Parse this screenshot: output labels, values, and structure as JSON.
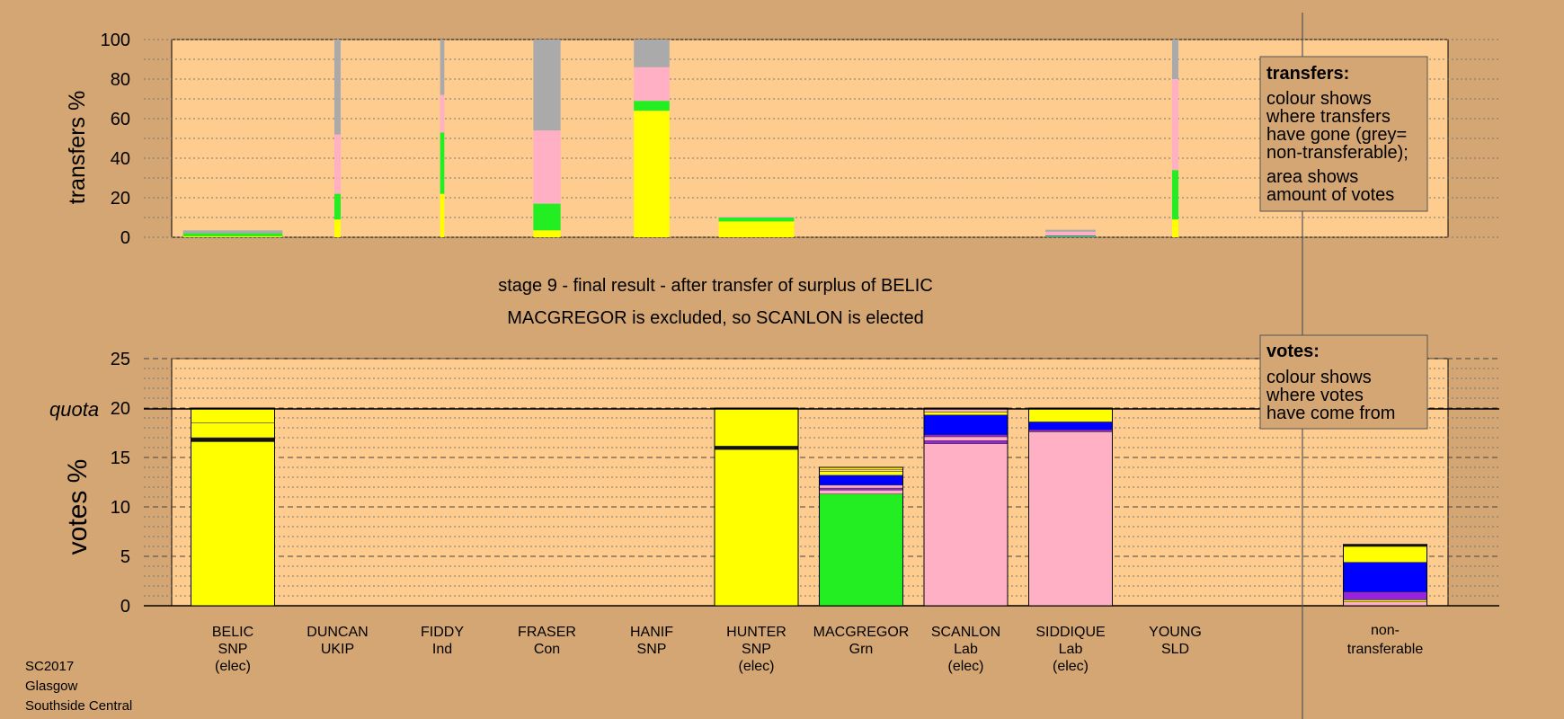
{
  "colors": {
    "background": "#d4a673",
    "panel": "#ffcc8f",
    "snp": "#ffff00",
    "green": "#22ee22",
    "labour": "#ffb0c4",
    "libdem": "#0000ff",
    "other": "#9922dd",
    "nontransferable": "#aaaaaa"
  },
  "footer": {
    "line1": "SC2017",
    "line2": "Glasgow",
    "line3": "Southside Central"
  },
  "stage_title": "stage 9 - final result - after transfer of surplus of BELIC",
  "stage_subtitle": "MACGREGOR is excluded, so SCANLON is elected",
  "transfers_legend": {
    "title": "transfers:",
    "lines": [
      "colour shows",
      "where transfers",
      "have gone (grey=",
      "non-transferable);",
      "area shows",
      "amount of votes"
    ]
  },
  "votes_legend": {
    "title": "votes:",
    "lines": [
      "colour shows",
      "where votes",
      "have come from"
    ]
  },
  "chart_data": [
    {
      "type": "bar",
      "name": "transfers",
      "ylabel": "transfers %",
      "ylim": [
        0,
        100
      ],
      "yticks": [
        0,
        20,
        40,
        60,
        80,
        100
      ],
      "grid": true,
      "bars": [
        {
          "center": 0,
          "width": 0.95,
          "segments": [
            {
              "color": "snp",
              "h": 0.5
            },
            {
              "color": "green",
              "h": 1.5
            },
            {
              "color": "nontransferable",
              "h": 1.5
            }
          ]
        },
        {
          "center": 1,
          "width": 0.06,
          "segments": [
            {
              "color": "snp",
              "h": 9
            },
            {
              "color": "green",
              "h": 13
            },
            {
              "color": "labour",
              "h": 30
            },
            {
              "color": "nontransferable",
              "h": 48
            }
          ]
        },
        {
          "center": 2,
          "width": 0.04,
          "segments": [
            {
              "color": "snp",
              "h": 22
            },
            {
              "color": "green",
              "h": 31
            },
            {
              "color": "labour",
              "h": 19
            },
            {
              "color": "nontransferable",
              "h": 28
            }
          ]
        },
        {
          "center": 3,
          "width": 0.26,
          "segments": [
            {
              "color": "snp",
              "h": 3.5
            },
            {
              "color": "green",
              "h": 13.5
            },
            {
              "color": "labour",
              "h": 37
            },
            {
              "color": "nontransferable",
              "h": 46
            }
          ]
        },
        {
          "center": 4,
          "width": 0.34,
          "segments": [
            {
              "color": "snp",
              "h": 64
            },
            {
              "color": "green",
              "h": 5
            },
            {
              "color": "labour",
              "h": 17
            },
            {
              "color": "nontransferable",
              "h": 14
            }
          ]
        },
        {
          "center": 5,
          "width": 0.72,
          "segments": [
            {
              "color": "snp",
              "h": 8
            },
            {
              "color": "green",
              "h": 2
            },
            {
              "color": "labour",
              "h": 0.5
            }
          ]
        },
        {
          "center": 8,
          "width": 0.48,
          "segments": [
            {
              "color": "green",
              "h": 0.5
            },
            {
              "color": "libdem",
              "h": 0.3
            },
            {
              "color": "labour",
              "h": 2
            },
            {
              "color": "nontransferable",
              "h": 1
            }
          ]
        },
        {
          "center": 9,
          "width": 0.06,
          "segments": [
            {
              "color": "snp",
              "h": 9
            },
            {
              "color": "green",
              "h": 25
            },
            {
              "color": "labour",
              "h": 46
            },
            {
              "color": "nontransferable",
              "h": 20
            }
          ]
        }
      ]
    },
    {
      "type": "bar",
      "name": "votes",
      "ylabel": "votes %",
      "ylim": [
        0,
        25
      ],
      "yticks": [
        0,
        5,
        10,
        15,
        20,
        25
      ],
      "quota": 20,
      "quota_label": "quota",
      "grid": true,
      "categories": [
        {
          "name": "BELIC",
          "party": "SNP",
          "status": "(elec)"
        },
        {
          "name": "DUNCAN",
          "party": "UKIP",
          "status": ""
        },
        {
          "name": "FIDDY",
          "party": "Ind",
          "status": ""
        },
        {
          "name": "FRASER",
          "party": "Con",
          "status": ""
        },
        {
          "name": "HANIF",
          "party": "SNP",
          "status": ""
        },
        {
          "name": "HUNTER",
          "party": "SNP",
          "status": "(elec)"
        },
        {
          "name": "MACGREGOR",
          "party": "Grn",
          "status": ""
        },
        {
          "name": "SCANLON",
          "party": "Lab",
          "status": "(elec)"
        },
        {
          "name": "SIDDIQUE",
          "party": "Lab",
          "status": "(elec)"
        },
        {
          "name": "YOUNG",
          "party": "SLD",
          "status": ""
        }
      ],
      "nontransferable_label": [
        "non-",
        "transferable"
      ],
      "values": [
        20.0,
        0,
        0,
        0,
        0,
        20.0,
        14.0,
        20.0,
        20.0,
        0
      ],
      "nontransferable_value": 6.2,
      "stacks": [
        [
          {
            "color": "snp",
            "h": 16.6
          },
          {
            "color": "#111111",
            "h": 0.4
          },
          {
            "color": "snp",
            "h": 1.5
          },
          {
            "color": "snp",
            "h": 1.5
          }
        ],
        [],
        [],
        [],
        [],
        [
          {
            "color": "snp",
            "h": 15.8
          },
          {
            "color": "#111111",
            "h": 0.35
          },
          {
            "color": "snp",
            "h": 3.85
          }
        ],
        [
          {
            "color": "green",
            "h": 11.3
          },
          {
            "color": "labour",
            "h": 0.4
          },
          {
            "color": "other",
            "h": 0.2
          },
          {
            "color": "labour",
            "h": 0.3
          },
          {
            "color": "libdem",
            "h": 1.0
          },
          {
            "color": "snp",
            "h": 0.4
          },
          {
            "color": "#ffcc8f",
            "h": 0.2
          },
          {
            "color": "snp",
            "h": 0.2
          }
        ],
        [
          {
            "color": "labour",
            "h": 16.4
          },
          {
            "color": "other",
            "h": 0.3
          },
          {
            "color": "labour",
            "h": 0.4
          },
          {
            "color": "other",
            "h": 0.2
          },
          {
            "color": "libdem",
            "h": 2.0
          },
          {
            "color": "snp",
            "h": 0.3
          },
          {
            "color": "labour",
            "h": 0.4
          }
        ],
        [
          {
            "color": "labour",
            "h": 17.6
          },
          {
            "color": "other",
            "h": 0.2
          },
          {
            "color": "libdem",
            "h": 0.8
          },
          {
            "color": "snp",
            "h": 1.4
          }
        ],
        [],
        [
          {
            "color": "labour",
            "h": 0.4
          },
          {
            "color": "snp",
            "h": 0.2
          },
          {
            "color": "other",
            "h": 0.8
          },
          {
            "color": "libdem",
            "h": 3.0
          },
          {
            "color": "snp",
            "h": 1.6
          },
          {
            "color": "#111111",
            "h": 0.2
          }
        ]
      ]
    }
  ]
}
